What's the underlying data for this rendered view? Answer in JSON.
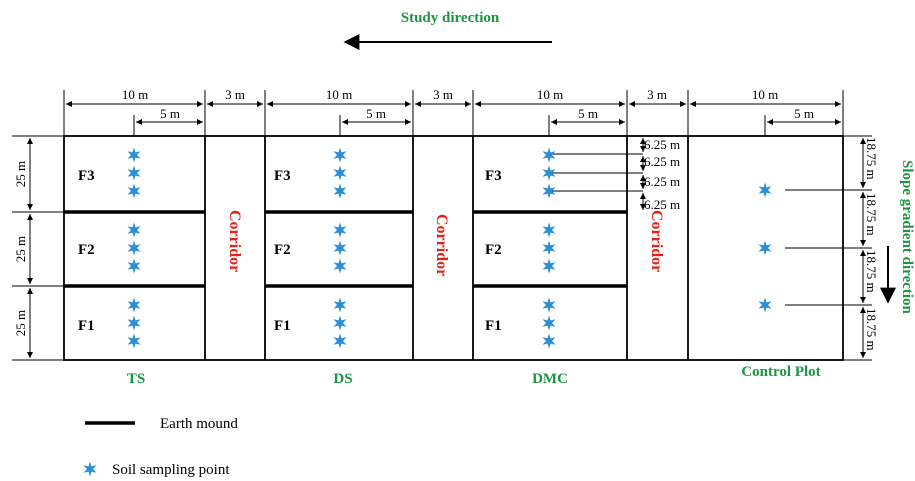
{
  "title": "Study direction",
  "side_label": "Slope gradient direction",
  "corridor_label": "Corridor",
  "plots": [
    {
      "name": "TS",
      "rows": [
        "F3",
        "F2",
        "F1"
      ]
    },
    {
      "name": "DS",
      "rows": [
        "F3",
        "F2",
        "F1"
      ]
    },
    {
      "name": "DMC",
      "rows": [
        "F3",
        "F2",
        "F1"
      ]
    },
    {
      "name": "Control Plot",
      "rows": []
    }
  ],
  "dims": {
    "plot_width": "10 m",
    "corridor_width": "3 m",
    "half_width": "5 m",
    "row_height": "25 m",
    "subspacing": "6.25 m",
    "control_spacing": "18.75 m"
  },
  "legend": {
    "mound": "Earth mound",
    "point": "Soil sampling point"
  },
  "colors": {
    "accent_green": "#1a9642",
    "corridor_red": "#e4211c",
    "point_blue": "#2a8fd6",
    "line": "#000000"
  }
}
